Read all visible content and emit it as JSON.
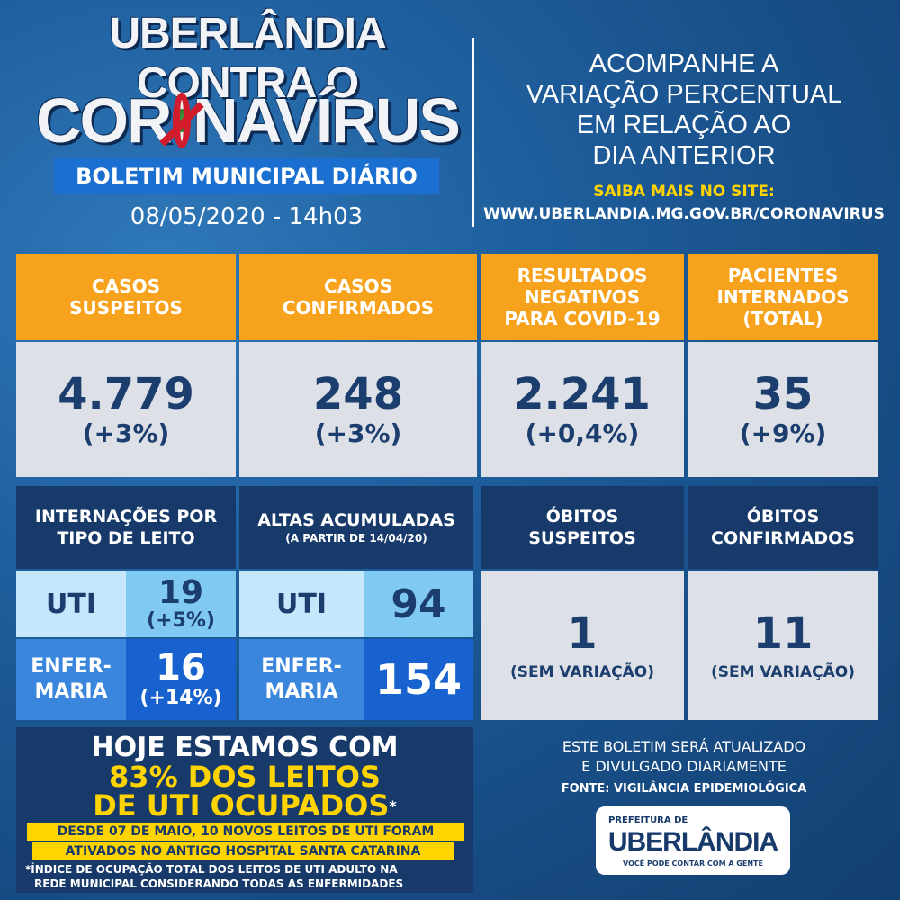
{
  "header": {
    "title_line1": "UBERLÂNDIA CONTRA O",
    "title_line2_a": "COR",
    "title_line2_b": "NAVÍRUS",
    "subtitle": "BOLETIM MUNICIPAL DIÁRIO",
    "datetime": "08/05/2020 - 14h03",
    "right_l1": "ACOMPANHE A",
    "right_l2": "VARIAÇÃO PERCENTUAL",
    "right_l3": "EM RELAÇÃO AO",
    "right_l4": "DIA ANTERIOR",
    "saiba": "SAIBA MAIS NO SITE:",
    "url": "WWW.UBERLANDIA.MG.GOV.BR/CORONAVIRUS"
  },
  "top_stats": [
    {
      "l1": "CASOS",
      "l2": "SUSPEITOS",
      "l3": "",
      "value": "4.779",
      "change": "(+3%)"
    },
    {
      "l1": "CASOS",
      "l2": "CONFIRMADOS",
      "l3": "",
      "value": "248",
      "change": "(+3%)"
    },
    {
      "l1": "RESULTADOS",
      "l2": "NEGATIVOS",
      "l3": "PARA COVID-19",
      "value": "2.241",
      "change": "(+0,4%)"
    },
    {
      "l1": "PACIENTES",
      "l2": "INTERNADOS",
      "l3": "(TOTAL)",
      "value": "35",
      "change": "(+9%)"
    }
  ],
  "internacoes": {
    "h1": "INTERNAÇÕES POR",
    "h2": "TIPO DE LEITO",
    "uti_label": "UTI",
    "uti_value": "19",
    "uti_change": "(+5%)",
    "enf_label1": "ENFER-",
    "enf_label2": "MARIA",
    "enf_value": "16",
    "enf_change": "(+14%)"
  },
  "altas": {
    "h1": "ALTAS ACUMULADAS",
    "h2": "(A PARTIR DE 14/04/20)",
    "uti_label": "UTI",
    "uti_value": "94",
    "enf_label1": "ENFER-",
    "enf_label2": "MARIA",
    "enf_value": "154"
  },
  "obitos_suspeitos": {
    "h1": "ÓBITOS",
    "h2": "SUSPEITOS",
    "value": "1",
    "note": "(SEM VARIAÇÃO)"
  },
  "obitos_confirmados": {
    "h1": "ÓBITOS",
    "h2": "CONFIRMADOS",
    "value": "11",
    "note": "(SEM VARIAÇÃO)"
  },
  "ocupacao": {
    "l1": "HOJE ESTAMOS COM",
    "l2": "83% DOS LEITOS",
    "l3": "DE UTI OCUPADOS",
    "asterisk": "*",
    "bar1": "DESDE 07 DE MAIO, 10 NOVOS LEITOS DE UTI FORAM",
    "bar2": "ATIVADOS NO ANTIGO HOSPITAL SANTA CATARINA",
    "foot1": "*ÍNDICE DE OCUPAÇÃO TOTAL DOS LEITOS DE UTI ADULTO NA",
    "foot2": "REDE MUNICIPAL CONSIDERANDO TODAS AS ENFERMIDADES"
  },
  "footer": {
    "info1": "ESTE BOLETIM SERÁ ATUALIZADO",
    "info2": "E DIVULGADO DIARIAMENTE",
    "fonte": "FONTE: VIGILÂNCIA EPIDEMIOLÓGICA",
    "logo_top": "PREFEITURA DE",
    "logo_main": "UBERLÂNDIA",
    "logo_tag": "VOCÊ PODE CONTAR COM A GENTE"
  },
  "colors": {
    "orange": "#f7a21c",
    "navy": "#173a6a",
    "light_blue": "#c5e6fb",
    "mid_blue": "#1862d0",
    "yellow": "#ffd400",
    "red": "#d21b2b"
  }
}
